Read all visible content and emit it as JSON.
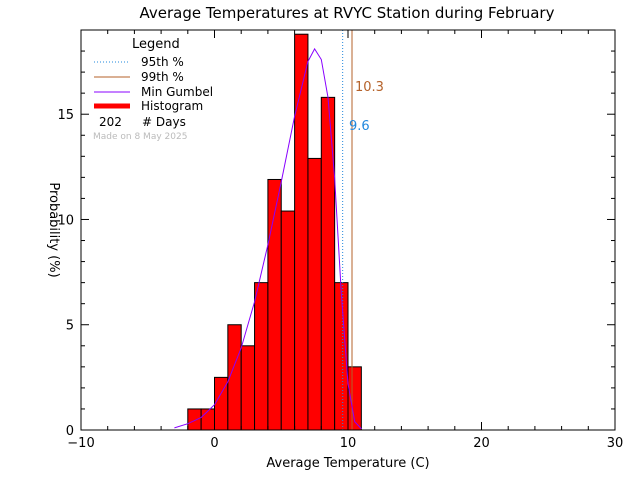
{
  "chart_data": {
    "type": "bar",
    "title": "Average Temperatures at RVYC Station during February",
    "xlabel": "Average Temperature (C)",
    "ylabel": "Probability (%)",
    "xlim": [
      -10,
      30
    ],
    "ylim": [
      0,
      19
    ],
    "xticks": [
      "−10",
      "0",
      "10",
      "20",
      "30"
    ],
    "xtick_values": [
      -10,
      0,
      10,
      20,
      30
    ],
    "yticks": [
      "0",
      "5",
      "10",
      "15"
    ],
    "ytick_values": [
      0,
      5,
      10,
      15
    ],
    "bins": [
      {
        "x0": -2,
        "x1": -1,
        "value": 1
      },
      {
        "x0": -1,
        "x1": 0,
        "value": 1
      },
      {
        "x0": 0,
        "x1": 1,
        "value": 2.5
      },
      {
        "x0": 1,
        "x1": 2,
        "value": 5
      },
      {
        "x0": 2,
        "x1": 3,
        "value": 4
      },
      {
        "x0": 3,
        "x1": 4,
        "value": 7
      },
      {
        "x0": 4,
        "x1": 5,
        "value": 11.9
      },
      {
        "x0": 5,
        "x1": 6,
        "value": 10.4
      },
      {
        "x0": 6,
        "x1": 7,
        "value": 18.8
      },
      {
        "x0": 7,
        "x1": 8,
        "value": 12.9
      },
      {
        "x0": 8,
        "x1": 9,
        "value": 15.8
      },
      {
        "x0": 9,
        "x1": 10,
        "value": 7
      },
      {
        "x0": 10,
        "x1": 11,
        "value": 3
      }
    ],
    "gumbel_curve": [
      {
        "x": -3,
        "y": 0.1
      },
      {
        "x": -2,
        "y": 0.3
      },
      {
        "x": -1,
        "y": 0.6
      },
      {
        "x": 0,
        "y": 1.2
      },
      {
        "x": 1,
        "y": 2.3
      },
      {
        "x": 2,
        "y": 3.9
      },
      {
        "x": 3,
        "y": 6.1
      },
      {
        "x": 4,
        "y": 8.8
      },
      {
        "x": 5,
        "y": 11.8
      },
      {
        "x": 6,
        "y": 14.9
      },
      {
        "x": 7,
        "y": 17.5
      },
      {
        "x": 7.5,
        "y": 18.1
      },
      {
        "x": 8,
        "y": 17.6
      },
      {
        "x": 8.5,
        "y": 15.8
      },
      {
        "x": 9,
        "y": 12.0
      },
      {
        "x": 9.5,
        "y": 6.5
      },
      {
        "x": 10,
        "y": 2.2
      },
      {
        "x": 10.5,
        "y": 0.4
      },
      {
        "x": 11,
        "y": 0.05
      }
    ],
    "p95": {
      "value": 9.6,
      "label": "9.6",
      "color": "#2288dd"
    },
    "p99": {
      "value": 10.3,
      "label": "10.3",
      "color": "#b5622a"
    },
    "colors": {
      "histogram": "#ff0000",
      "gumbel": "#8800ff",
      "axes": "#000000"
    },
    "legend": {
      "title": "Legend",
      "entries": [
        {
          "label": "95th %",
          "style": "dotted",
          "color": "#2288dd"
        },
        {
          "label": "99th %",
          "style": "solid",
          "color": "#b5622a"
        },
        {
          "label": "Min Gumbel",
          "style": "solid",
          "color": "#8800ff"
        },
        {
          "label": "Histogram",
          "style": "thick",
          "color": "#ff0000"
        }
      ],
      "days_count": "202",
      "days_label": "# Days",
      "made_on": "Made on 8 May 2025",
      "placement": "top-left"
    }
  }
}
